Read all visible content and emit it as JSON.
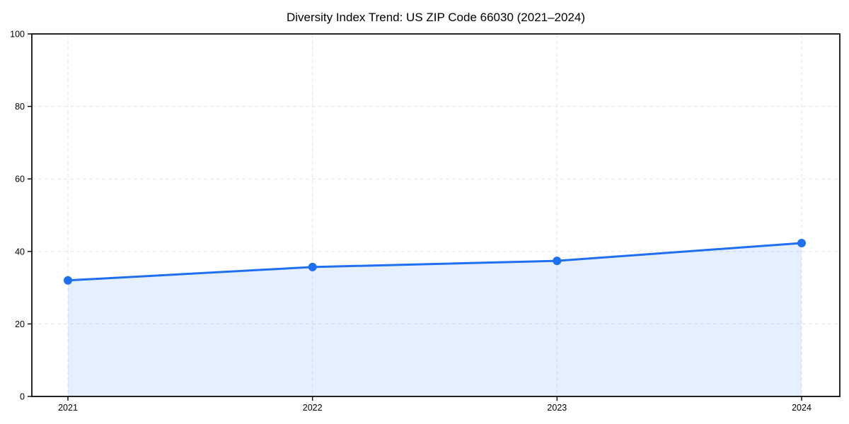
{
  "chart_data": {
    "type": "line",
    "title": "Diversity Index Trend: US ZIP Code 66030 (2021–2024)",
    "series_name": "Diversity Index",
    "x": [
      2021,
      2022,
      2023,
      2024
    ],
    "values": [
      32.0,
      35.7,
      37.4,
      42.3
    ],
    "xlabel": "",
    "ylabel": "",
    "xlim": [
      2021,
      2024
    ],
    "ylim": [
      0,
      100
    ],
    "xticks": [
      2021,
      2022,
      2023,
      2024
    ],
    "yticks": [
      0,
      20,
      40,
      60,
      80,
      100
    ],
    "grid": true,
    "grid_style": "dashed",
    "legend": false,
    "marker": "circle",
    "area_fill": true,
    "colors": {
      "line": "#1f6ff2",
      "marker": "#1f6ff2",
      "area": "#1f6ff2",
      "area_opacity": 0.11,
      "grid": "#e3e3e3",
      "axis": "#000000",
      "text": "#000000",
      "background": "#ffffff"
    }
  }
}
